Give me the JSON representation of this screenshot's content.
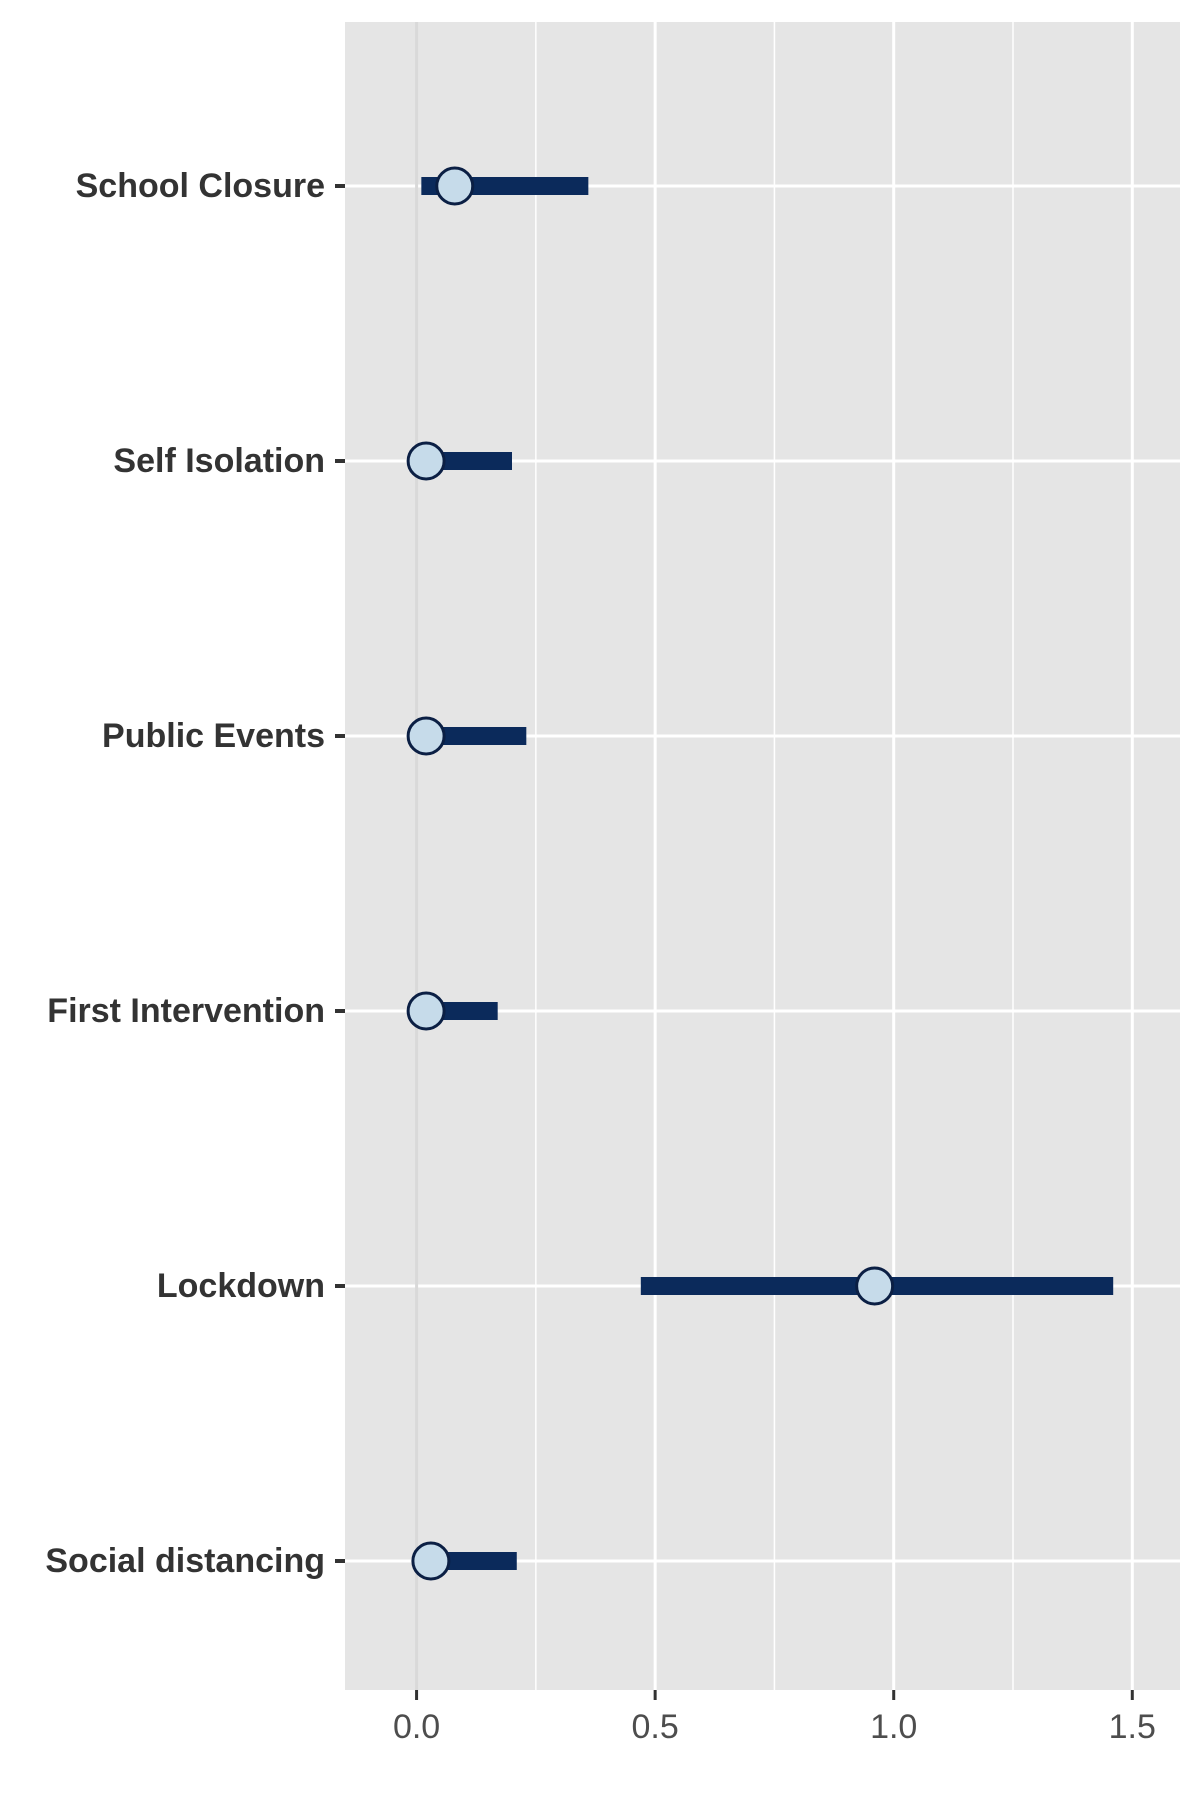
{
  "chart_data": {
    "type": "forest",
    "xlim": [
      -0.15,
      1.6
    ],
    "x_ticks": [
      0.0,
      0.5,
      1.0,
      1.5
    ],
    "x_tick_labels": [
      "0.0",
      "0.5",
      "1.0",
      "1.5"
    ],
    "x_minor_ticks": [
      0.25,
      0.75,
      1.25
    ],
    "reference_line_x": 0.0,
    "grid": true,
    "categories": [
      "School Closure",
      "Self Isolation",
      "Public Events",
      "First Intervention",
      "Lockdown",
      "Social distancing"
    ],
    "points": [
      {
        "label": "School Closure",
        "estimate": 0.08,
        "lower": 0.01,
        "upper": 0.36
      },
      {
        "label": "Self Isolation",
        "estimate": 0.02,
        "lower": 0.0,
        "upper": 0.2
      },
      {
        "label": "Public Events",
        "estimate": 0.02,
        "lower": 0.0,
        "upper": 0.23
      },
      {
        "label": "First Intervention",
        "estimate": 0.02,
        "lower": 0.0,
        "upper": 0.17
      },
      {
        "label": "Lockdown",
        "estimate": 0.96,
        "lower": 0.47,
        "upper": 1.46
      },
      {
        "label": "Social distancing",
        "estimate": 0.03,
        "lower": 0.0,
        "upper": 0.21
      }
    ],
    "colors": {
      "panel_background": "#e5e5e5",
      "grid": "#ffffff",
      "interval": "#0b2a5b",
      "point_fill": "#c6dbea",
      "point_stroke": "#0b1f44",
      "reference_line": "#d9d9d9"
    }
  }
}
